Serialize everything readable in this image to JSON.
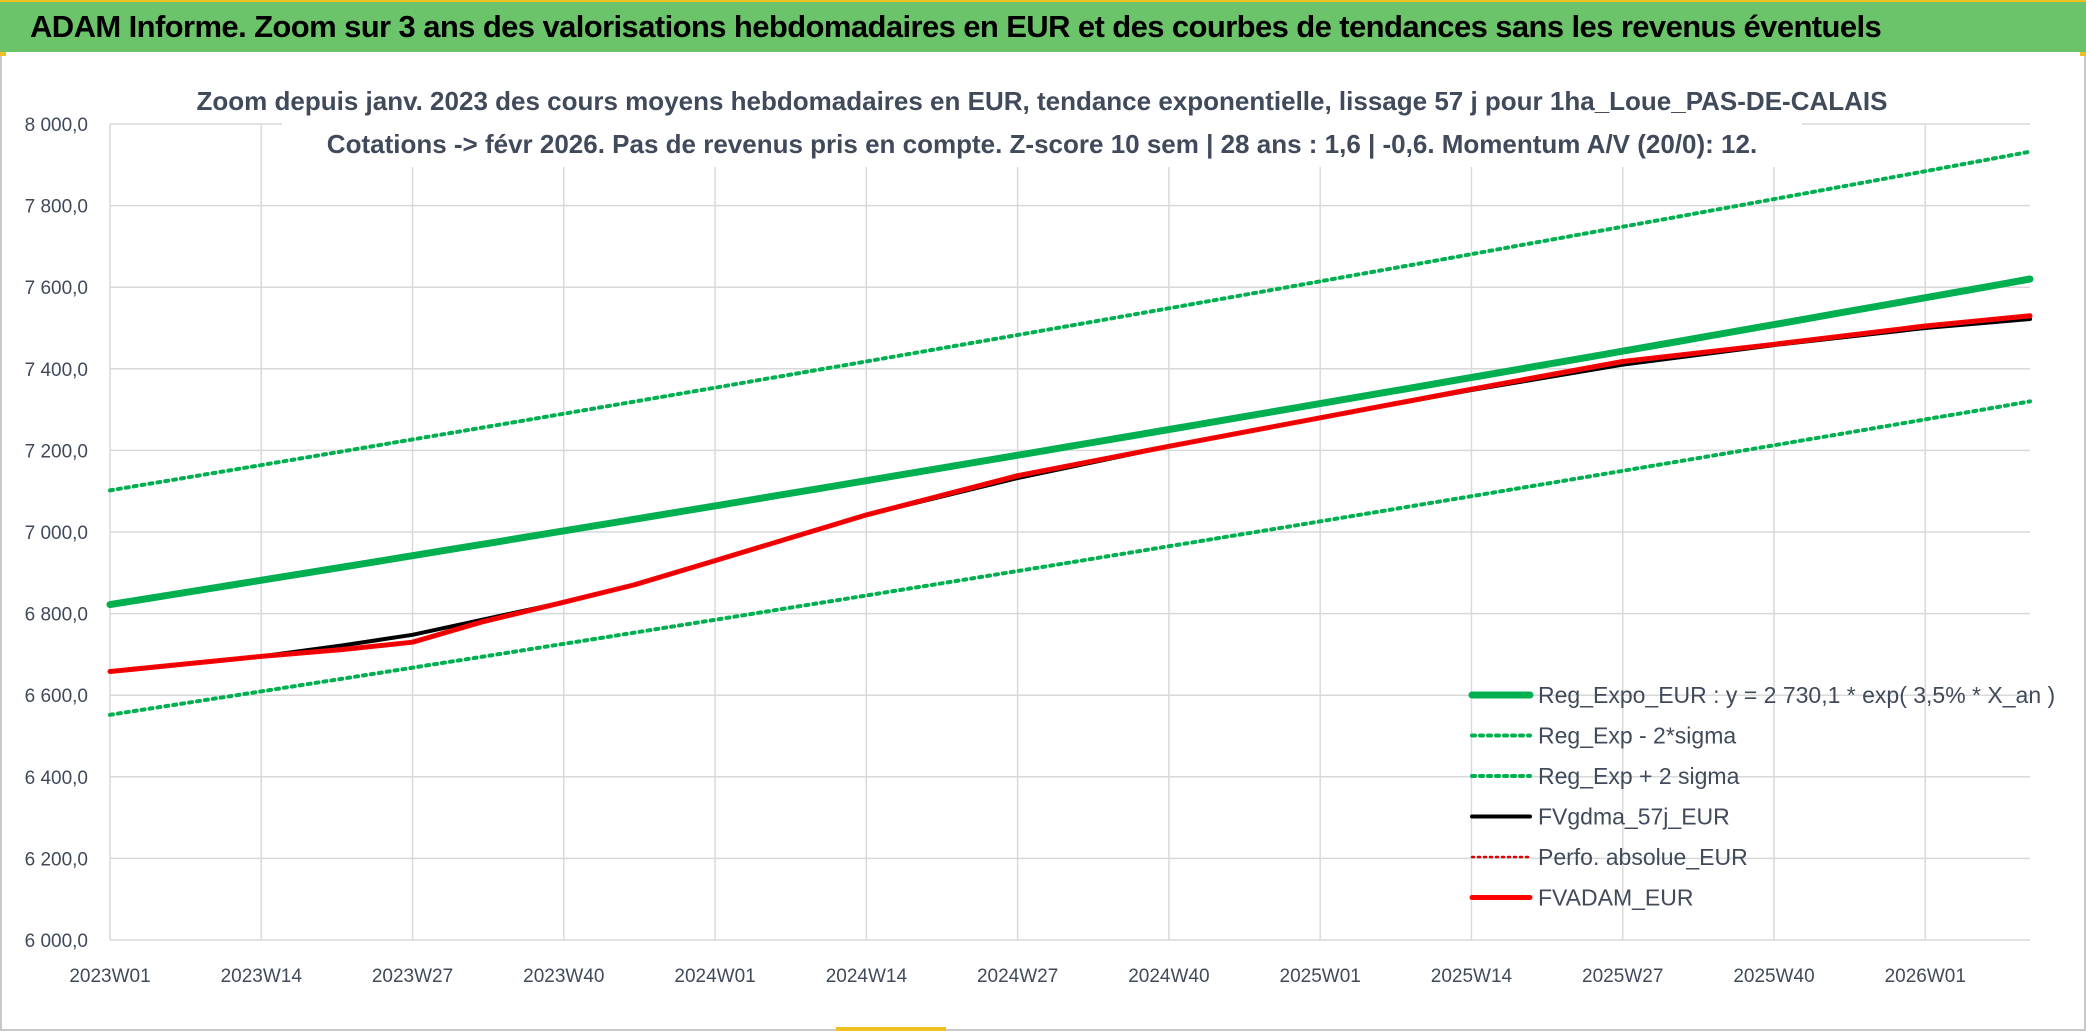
{
  "page_title": "ADAM Informe. Zoom sur 3 ans des valorisations hebdomadaires en EUR et des courbes de tendances sans les revenus éventuels",
  "colors": {
    "banner": "#6cc46a",
    "trend": "#00b050",
    "fv57": "#000000",
    "perfo": "#e00000",
    "fvadam": "#ff0000",
    "grid": "#d9d9d9",
    "text": "#404a5a"
  },
  "chart_data": {
    "type": "line",
    "title_lines": [
      "Zoom depuis janv. 2023 des cours moyens hebdomadaires en EUR, tendance exponentielle, lissage 57 j pour 1ha_Loue_PAS-DE-CALAIS",
      "Cotations -> févr 2026. Pas de revenus pris en compte. Z-score 10 sem | 28 ans : 1,6 | -0,6. Momentum A/V (20/0): 12."
    ],
    "x_ticks": [
      "2023W01",
      "2023W14",
      "2023W27",
      "2023W40",
      "2024W01",
      "2024W14",
      "2024W27",
      "2024W40",
      "2025W01",
      "2025W14",
      "2025W27",
      "2025W40",
      "2026W01"
    ],
    "x_range_weeks": [
      0,
      165
    ],
    "ylim": [
      6000,
      8000
    ],
    "y_ticks": [
      6000,
      6200,
      6400,
      6600,
      6800,
      7000,
      7200,
      7400,
      7600,
      7800,
      8000
    ],
    "y_tick_labels": [
      "6 000,0",
      "6 200,0",
      "6 400,0",
      "6 600,0",
      "6 800,0",
      "7 000,0",
      "7 200,0",
      "7 400,0",
      "7 600,0",
      "7 800,0",
      "8 000,0"
    ],
    "grid": true,
    "legend_position": "bottom-right",
    "series": [
      {
        "key": "trend",
        "name": "Reg_Expo_EUR : y = 2 730,1 * exp( 3,5% *  X_an )",
        "style": "solid-thick",
        "x": [
          0,
          165
        ],
        "y": [
          6822,
          7620
        ],
        "exponential": true
      },
      {
        "key": "lower",
        "name": "Reg_Exp - 2*sigma",
        "style": "dotted",
        "x": [
          0,
          165
        ],
        "y": [
          6552,
          7320
        ],
        "exponential": true
      },
      {
        "key": "upper",
        "name": "Reg_Exp + 2 sigma",
        "style": "dotted",
        "x": [
          0,
          165
        ],
        "y": [
          7102,
          7932
        ],
        "exponential": true
      },
      {
        "key": "fv57",
        "name": "FVgdma_57j_EUR",
        "style": "solid",
        "x": [
          0,
          13,
          20,
          26,
          32,
          39,
          45,
          52,
          65,
          78,
          91,
          104,
          117,
          130,
          143,
          156,
          165
        ],
        "y": [
          6658,
          6695,
          6722,
          6748,
          6785,
          6828,
          6870,
          6930,
          7042,
          7132,
          7210,
          7280,
          7348,
          7410,
          7458,
          7500,
          7522
        ]
      },
      {
        "key": "perfo",
        "name": "Perfo. absolue_EUR",
        "style": "dotted-thin",
        "x": [
          0,
          13,
          20,
          26,
          32,
          39,
          45,
          52,
          65,
          78,
          91,
          104,
          117,
          130,
          143,
          156,
          165
        ],
        "y": [
          6658,
          6695,
          6712,
          6730,
          6780,
          6828,
          6870,
          6930,
          7042,
          7138,
          7210,
          7280,
          7350,
          7418,
          7460,
          7505,
          7530
        ]
      },
      {
        "key": "fvadam",
        "name": "FVADAM_EUR",
        "style": "solid-thick",
        "x": [
          0,
          13,
          20,
          26,
          32,
          39,
          45,
          52,
          65,
          78,
          91,
          104,
          117,
          130,
          143,
          156,
          165
        ],
        "y": [
          6658,
          6695,
          6712,
          6730,
          6780,
          6828,
          6870,
          6930,
          7042,
          7138,
          7210,
          7280,
          7350,
          7418,
          7460,
          7505,
          7530
        ]
      }
    ]
  }
}
